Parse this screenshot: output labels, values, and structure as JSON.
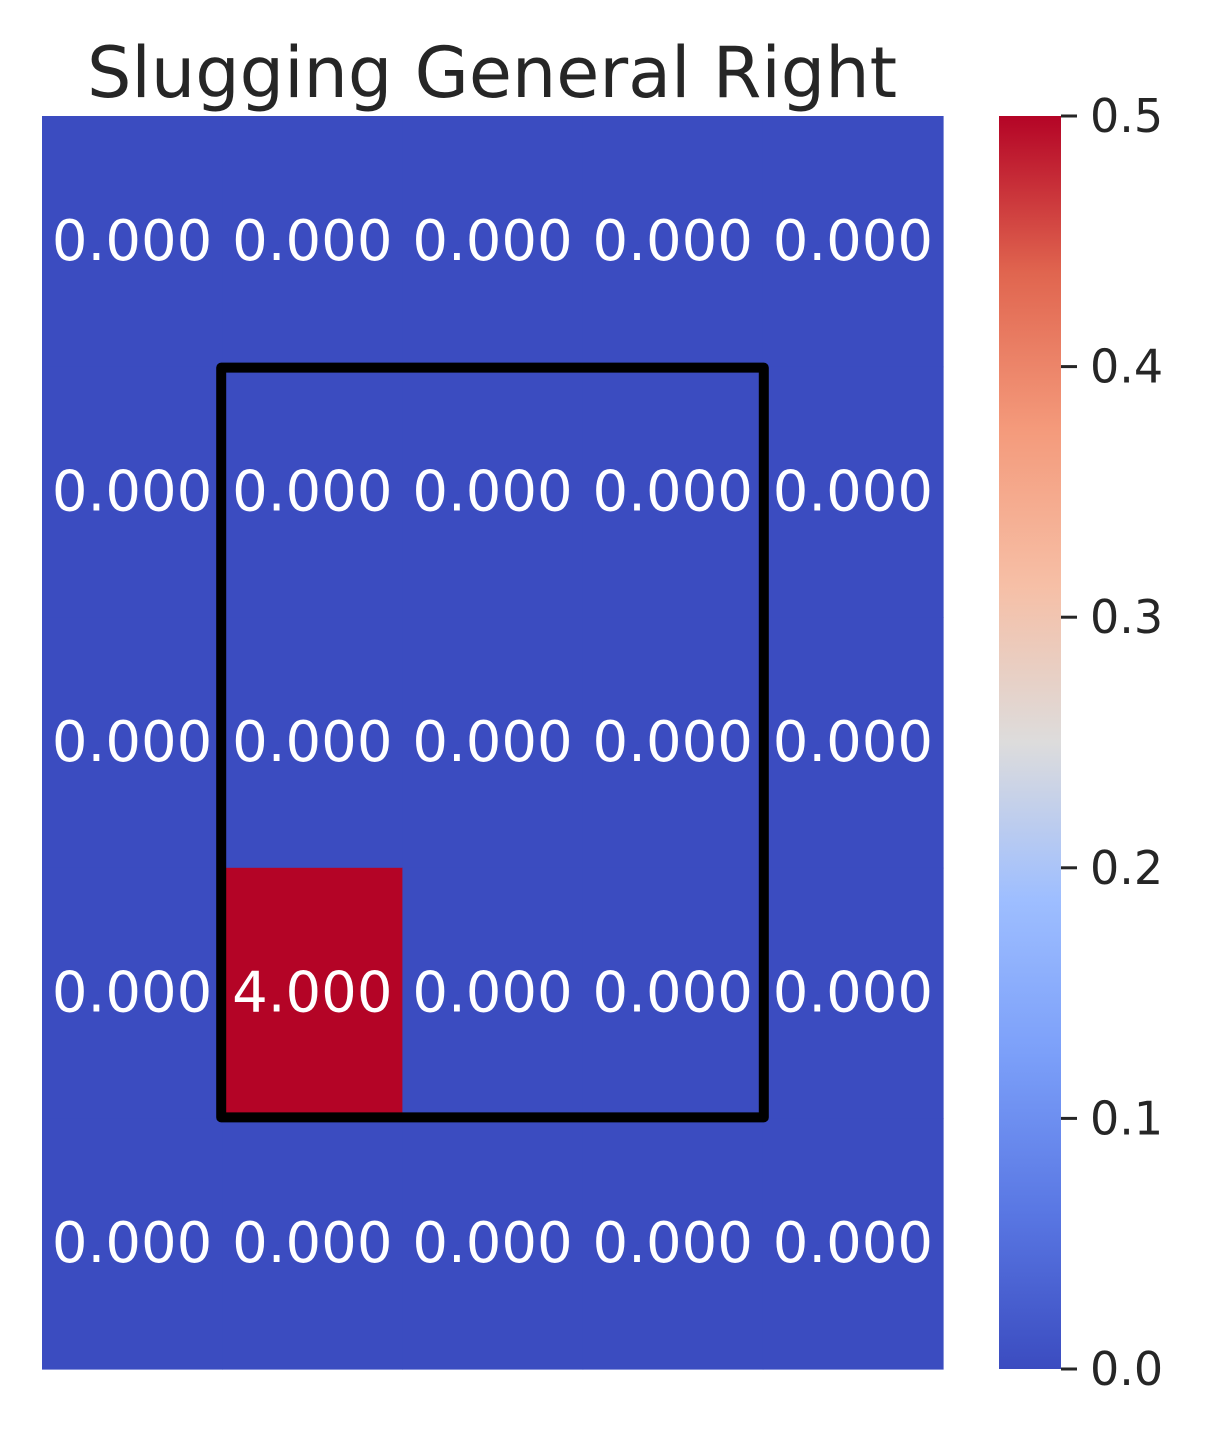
{
  "chart_data": {
    "type": "heatmap",
    "title": "Slugging General Right",
    "rows": 5,
    "cols": 5,
    "values": [
      [
        0,
        0,
        0,
        0,
        0
      ],
      [
        0,
        0,
        0,
        0,
        0
      ],
      [
        0,
        0,
        0,
        0,
        0
      ],
      [
        0,
        4,
        0,
        0,
        0
      ],
      [
        0,
        0,
        0,
        0,
        0
      ]
    ],
    "cell_labels": [
      [
        "0.000",
        "0.000",
        "0.000",
        "0.000",
        "0.000"
      ],
      [
        "0.000",
        "0.000",
        "0.000",
        "0.000",
        "0.000"
      ],
      [
        "0.000",
        "0.000",
        "0.000",
        "0.000",
        "0.000"
      ],
      [
        "0.000",
        "4.000",
        "0.000",
        "0.000",
        "0.000"
      ],
      [
        "0.000",
        "0.000",
        "0.000",
        "0.000",
        "0.000"
      ]
    ],
    "colormap": "coolwarm",
    "colorbar": {
      "vmin": 0.0,
      "vmax": 0.5,
      "ticks": [
        0.0,
        0.1,
        0.2,
        0.3,
        0.4,
        0.5
      ],
      "tick_labels": [
        "0.0",
        "0.1",
        "0.2",
        "0.3",
        "0.4",
        "0.5"
      ],
      "placement": "right"
    },
    "strike_zone": {
      "row_start": 1,
      "row_end": 3,
      "col_start": 1,
      "col_end": 3,
      "color": "#000000"
    },
    "colors": {
      "low": "#3b4cc0",
      "high": "#b40426"
    },
    "xlabel": "",
    "ylabel": "",
    "grid": false
  }
}
